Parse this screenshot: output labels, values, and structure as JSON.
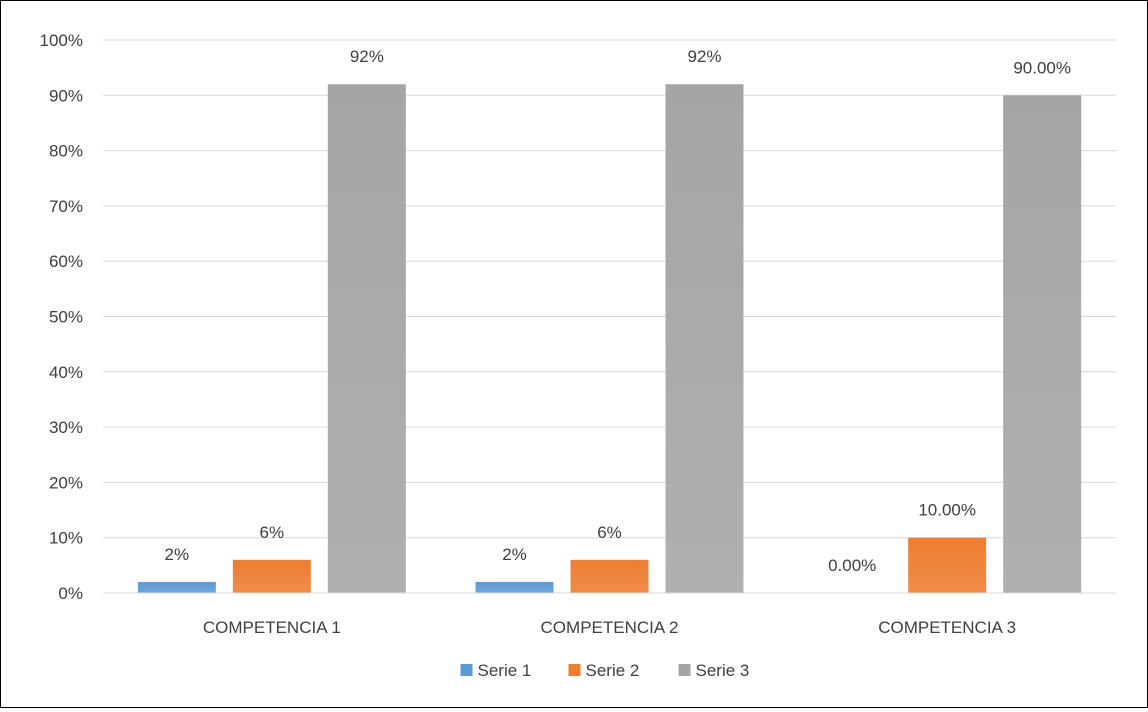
{
  "chart_data": {
    "type": "bar",
    "categories": [
      "COMPETENCIA 1",
      "COMPETENCIA 2",
      "COMPETENCIA 3"
    ],
    "series": [
      {
        "name": "Serie 1",
        "values": [
          2,
          2,
          0
        ],
        "labels": [
          "2%",
          "2%",
          "0.00%"
        ],
        "color": "#5b9bd5"
      },
      {
        "name": "Serie 2",
        "values": [
          6,
          6,
          10
        ],
        "labels": [
          "6%",
          "6%",
          "10.00%"
        ],
        "color": "#ed7d31"
      },
      {
        "name": "Serie 3",
        "values": [
          92,
          92,
          90
        ],
        "labels": [
          "92%",
          "92%",
          "90.00%"
        ],
        "color": "#a5a5a5"
      }
    ],
    "ylim": [
      0,
      100
    ],
    "yticks": [
      "0%",
      "10%",
      "20%",
      "30%",
      "40%",
      "50%",
      "60%",
      "70%",
      "80%",
      "90%",
      "100%"
    ],
    "grid": true,
    "legend": "bottom",
    "title": "",
    "xlabel": "",
    "ylabel": ""
  }
}
